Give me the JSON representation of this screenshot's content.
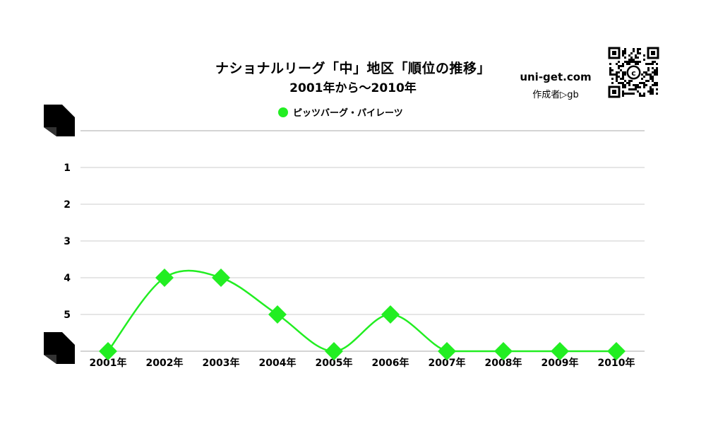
{
  "title": "ナショナルリーグ「中」地区「順位の推移」",
  "subtitle": "2001年から～2010年",
  "brand": {
    "site": "uni-get.com",
    "author": "作成者▷gb"
  },
  "colors": {
    "series": "#22ee22",
    "grid": "#cccccc",
    "axis": "#aaaaaa"
  },
  "chart_data": {
    "type": "line",
    "title": "ナショナルリーグ「中」地区「順位の推移」",
    "subtitle": "2001年から～2010年",
    "x": [
      "2001年",
      "2002年",
      "2003年",
      "2004年",
      "2005年",
      "2006年",
      "2007年",
      "2008年",
      "2009年",
      "2010年"
    ],
    "y_tick_labels": [
      "",
      "1",
      "2",
      "3",
      "4",
      "5",
      ""
    ],
    "ylim": [
      0,
      6
    ],
    "y_inverted": true,
    "grid": true,
    "legend_position": "top-center",
    "series": [
      {
        "name": "ピッツバーグ・パイレーツ",
        "marker": "diamond",
        "smooth": true,
        "values": [
          6,
          4,
          4,
          5,
          6,
          5,
          6,
          6,
          6,
          6
        ]
      }
    ]
  }
}
